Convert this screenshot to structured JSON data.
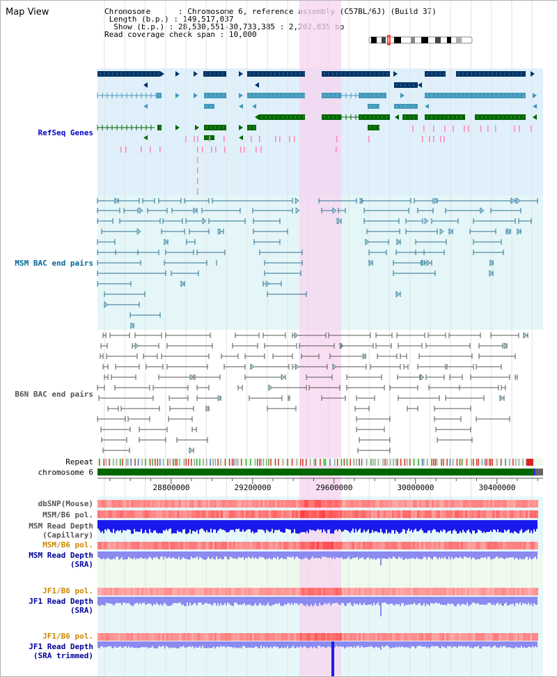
{
  "title": "Map View",
  "info": {
    "chromosome_key": "Chromosome",
    "chromosome_val": "Chromosome 6, reference assembly (C57BL/6J) (Build 37)",
    "length_key": "Length (b.p.)",
    "length_val": "149,517,037",
    "show_key": "Show (b.p.)",
    "show_val": "28,530,551-30,733,385 : 2,202,835 bp",
    "coverage_key": "Read coverage check span",
    "coverage_val": "10,000"
  },
  "tracks": {
    "refseq": "RefSeq Genes",
    "msm_bac": "MSM BAC end pairs",
    "b6n_bac": "B6N BAC end pairs",
    "repeat": "Repeat",
    "chromosome": "chromosome 6",
    "dbsnp": "dbSNP(Mouse)",
    "msm_b6_pol_1": "MSM/B6 pol.",
    "msm_depth_cap_1": "MSM Read Depth",
    "msm_depth_cap_2": "(Capillary)",
    "msm_b6_pol_2": "MSM/B6 pol.",
    "msm_depth_sra_1": "MSM Read Depth",
    "msm_depth_sra_2": "(SRA)",
    "jf1_b6_pol_1": "JF1/B6 pol.",
    "jf1_depth_sra_1": "JF1 Read Depth",
    "jf1_depth_sra_2": "(SRA)",
    "jf1_b6_pol_2": "JF1/B6 pol.",
    "jf1_depth_trim_1": "JF1 Read Depth",
    "jf1_depth_trim_2": "(SRA trimmed)"
  },
  "axis": {
    "ticks": [
      "28800000",
      "29200000",
      "29600000",
      "30000000",
      "30400000"
    ]
  },
  "colors": {
    "refseq_label": "#0000cc",
    "msm_label": "#006699",
    "b6n_label": "#555555",
    "pol_label": "#cc8800",
    "depth_label": "#000099",
    "highlight": "#f7d4f0",
    "gene_dark": "#003366",
    "gene_mid": "#4499bb",
    "gene_green": "#006600",
    "chromosome_bar": "#006600"
  }
}
